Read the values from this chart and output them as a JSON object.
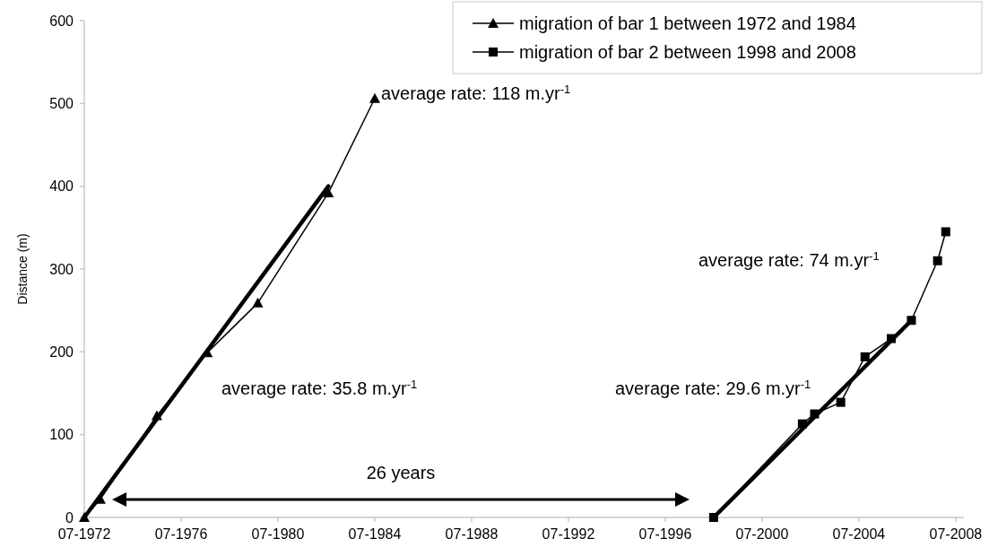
{
  "chart_data": {
    "type": "line",
    "ylabel": "Distance (m)",
    "xlim": [
      "1972-07-01",
      "2008-11-01"
    ],
    "xticks": [
      {
        "value": "1972-07-01",
        "label": "07-1972"
      },
      {
        "value": "1976-07-01",
        "label": "07-1976"
      },
      {
        "value": "1980-07-01",
        "label": "07-1980"
      },
      {
        "value": "1984-07-01",
        "label": "07-1984"
      },
      {
        "value": "1988-07-01",
        "label": "07-1988"
      },
      {
        "value": "1992-07-01",
        "label": "07-1992"
      },
      {
        "value": "1996-07-01",
        "label": "07-1996"
      },
      {
        "value": "2000-07-01",
        "label": "07-2000"
      },
      {
        "value": "2004-07-01",
        "label": "07-2004"
      },
      {
        "value": "2008-07-01",
        "label": "07-2008"
      }
    ],
    "ylim": [
      0,
      600
    ],
    "yticks": [
      0,
      100,
      200,
      300,
      400,
      500,
      600
    ],
    "grid": false,
    "legend": "top right",
    "line_style": "solid",
    "series": [
      {
        "name": "migration of bar 1 between 1972 and 1984",
        "color": "#000000",
        "marker": "triangle",
        "x": [
          "1972-07",
          "1973-03",
          "1975-07",
          "1977-08",
          "1979-09",
          "1982-08",
          "1984-07"
        ],
        "values": [
          0,
          22,
          123,
          199,
          259,
          392,
          506
        ]
      },
      {
        "name": "migration of bar 2 between 1998 and 2008",
        "color": "#000000",
        "marker": "square",
        "x": [
          "1998-07",
          "2002-03",
          "2002-09",
          "2003-10",
          "2004-10",
          "2005-11",
          "2006-09",
          "2007-10",
          "2008-02"
        ],
        "values": [
          0,
          113,
          125,
          139,
          194,
          216,
          238,
          310,
          345
        ]
      },
      {
        "type": "line",
        "color": "#000000",
        "marker": "none",
        "x": [
          "1972-07",
          "1982-08"
        ],
        "values": [
          0,
          400
        ]
      },
      {
        "type": "line",
        "color": "#000000",
        "marker": "none",
        "x": [
          "1998-07",
          "2006-09"
        ],
        "values": [
          0,
          238
        ]
      }
    ],
    "annotations": [
      "average rate: 118 m.yr$^{-1}$",
      "average rate: 35.8 m.yr$^{-1}$",
      "average rate: 74 m.yr$^{-1}$",
      "average rate: 29.6 m.yr$^{-1}$",
      "26 years"
    ]
  }
}
